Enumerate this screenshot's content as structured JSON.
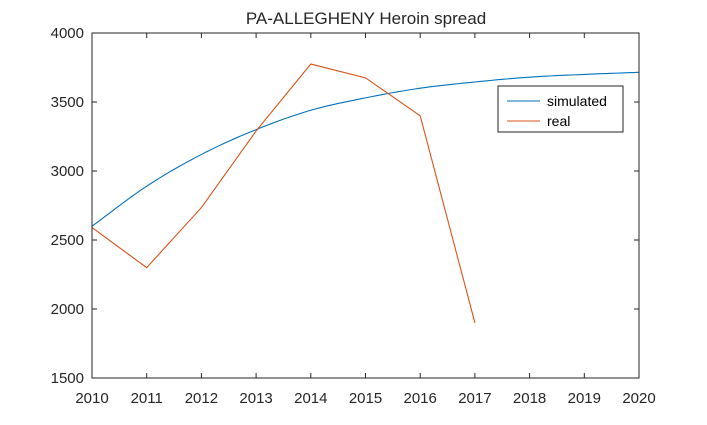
{
  "chart_data": {
    "type": "line",
    "title": "PA-ALLEGHENY Heroin spread",
    "xlabel": "",
    "ylabel": "",
    "xlim": [
      2010,
      2020
    ],
    "ylim": [
      1500,
      4000
    ],
    "x_ticks": [
      2010,
      2011,
      2012,
      2013,
      2014,
      2015,
      2016,
      2017,
      2018,
      2019,
      2020
    ],
    "y_ticks": [
      1500,
      2000,
      2500,
      3000,
      3500,
      4000
    ],
    "grid": false,
    "legend_position": "top-right",
    "series": [
      {
        "name": "simulated",
        "color": "#0072BD",
        "x": [
          2010,
          2011,
          2012,
          2013,
          2014,
          2015,
          2016,
          2017,
          2018,
          2019,
          2020
        ],
        "values": [
          2600,
          2890,
          3120,
          3300,
          3440,
          3530,
          3600,
          3645,
          3680,
          3700,
          3715
        ]
      },
      {
        "name": "real",
        "color": "#D95319",
        "x": [
          2010,
          2011,
          2012,
          2013,
          2014,
          2015,
          2016,
          2017
        ],
        "values": [
          2590,
          2300,
          2735,
          3290,
          3775,
          3675,
          3400,
          1900
        ]
      }
    ]
  }
}
